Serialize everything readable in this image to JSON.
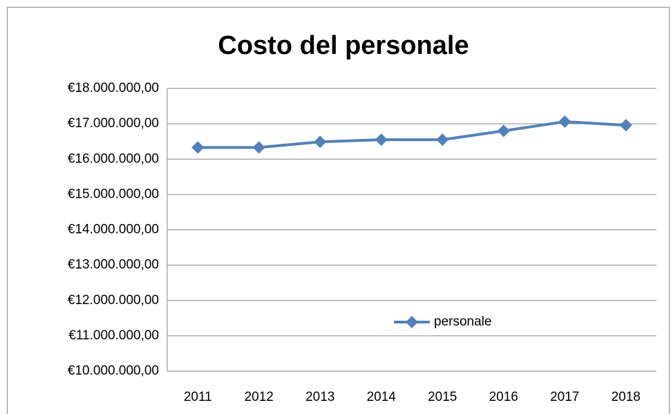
{
  "chart_data": {
    "type": "line",
    "title": "Costo del personale",
    "categories": [
      "2011",
      "2012",
      "2013",
      "2014",
      "2015",
      "2016",
      "2017",
      "2018"
    ],
    "series": [
      {
        "name": "personale",
        "color": "#4f81bd",
        "values": [
          16330000,
          16330000,
          16490000,
          16550000,
          16550000,
          16800000,
          17060000,
          16960000
        ]
      }
    ],
    "ylim": [
      10000000,
      18000000
    ],
    "yticks": [
      {
        "value": 10000000,
        "label": "€10.000.000,00"
      },
      {
        "value": 11000000,
        "label": "€11.000.000,00"
      },
      {
        "value": 12000000,
        "label": "€12.000.000,00"
      },
      {
        "value": 13000000,
        "label": "€13.000.000,00"
      },
      {
        "value": 14000000,
        "label": "€14.000.000,00"
      },
      {
        "value": 15000000,
        "label": "€15.000.000,00"
      },
      {
        "value": 16000000,
        "label": "€16.000.000,00"
      },
      {
        "value": 17000000,
        "label": "€17.000.000,00"
      },
      {
        "value": 18000000,
        "label": "€18.000.000,00"
      }
    ],
    "grid": true,
    "legend": "lower right"
  }
}
